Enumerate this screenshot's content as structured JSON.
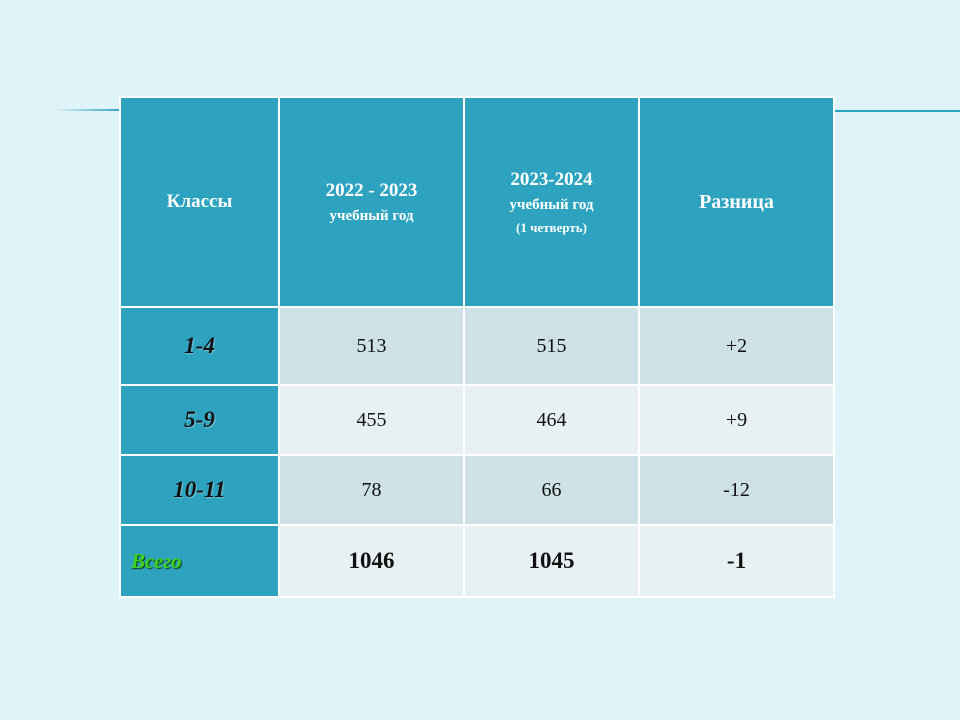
{
  "table": {
    "headers": {
      "classes": "Классы",
      "year1_main": "2022 - 2023",
      "year1_sub": "учебный год",
      "year2_main": "2023-2024",
      "year2_sub": "учебный год",
      "year2_note": "(1 четверть)",
      "difference": "Разница"
    },
    "rows": [
      {
        "label": "1-4",
        "year1": "513",
        "year2": "515",
        "diff": "+2"
      },
      {
        "label": "5-9",
        "year1": "455",
        "year2": "464",
        "diff": "+9"
      },
      {
        "label": "10-11",
        "year1": "78",
        "year2": "66",
        "diff": "-12"
      }
    ],
    "total": {
      "label": "Всего",
      "year1": "1046",
      "year2": "1045",
      "diff": "-1"
    }
  },
  "colors": {
    "background": "#dff4f9",
    "header": "#2ea3c0",
    "row_dark": "#cde1e6",
    "row_light": "#e7f0f3",
    "total_label": "#3ed11e"
  }
}
